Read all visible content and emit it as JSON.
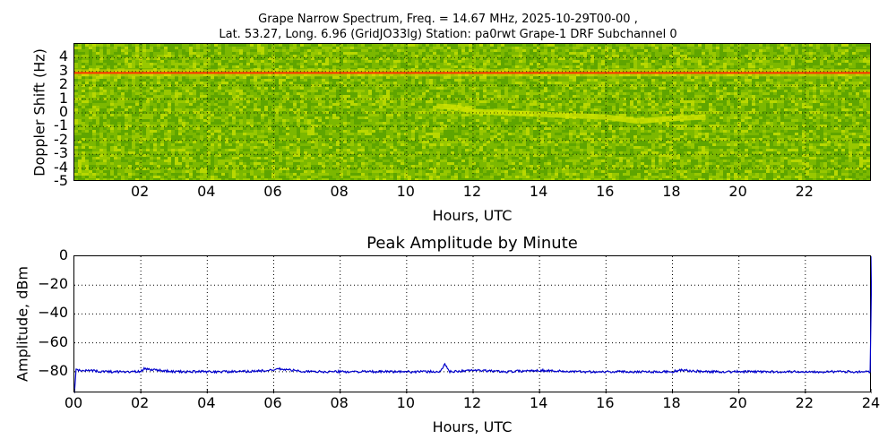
{
  "header": {
    "line1": "Grape Narrow Spectrum, Freq. = 14.67 MHz, 2025-10-29T00-00 ,",
    "line2": "Lat.  53.27, Long.   6.96 (GridJO33lg) Station: pa0rwt Grape-1 DRF Subchannel 0"
  },
  "spectrogram": {
    "ylabel": "Doppler Shift (Hz)",
    "xlabel": "Hours, UTC",
    "yticks": [
      "4",
      "3",
      "2",
      "1",
      "0",
      "-1",
      "-2",
      "-3",
      "-4",
      "-5"
    ],
    "xticks": [
      "02",
      "04",
      "06",
      "08",
      "10",
      "12",
      "14",
      "16",
      "18",
      "20",
      "22"
    ]
  },
  "amplitude": {
    "title": "Peak Amplitude by Minute",
    "ylabel": "Amplitude, dBm",
    "xlabel": "Hours, UTC",
    "yticks": [
      "0",
      "−20",
      "−40",
      "−60",
      "−80"
    ],
    "xticks": [
      "00",
      "02",
      "04",
      "06",
      "08",
      "10",
      "12",
      "14",
      "16",
      "18",
      "20",
      "22",
      "24"
    ]
  },
  "chart_data": [
    {
      "type": "heatmap",
      "title": "Grape Narrow Spectrum, Freq. = 14.67 MHz, 2025-10-29T00-00 , Lat. 53.27, Long. 6.96 (GridJO33lg) Station: pa0rwt Grape-1 DRF Subchannel 0",
      "xlabel": "Hours, UTC",
      "ylabel": "Doppler Shift (Hz)",
      "xlim": [
        0,
        24
      ],
      "ylim": [
        -5,
        5
      ],
      "xticks": [
        "02",
        "04",
        "06",
        "08",
        "10",
        "12",
        "14",
        "16",
        "18",
        "20",
        "22"
      ],
      "yticks": [
        4,
        3,
        2,
        1,
        0,
        -1,
        -2,
        -3,
        -4,
        -5
      ],
      "grid": true,
      "features": [
        {
          "name": "carrier line",
          "doppler_hz": 2.9,
          "hours": [
            0,
            24
          ],
          "color": "#ff4000"
        },
        {
          "name": "ionospheric trace",
          "points": [
            [
              10.9,
              0.5
            ],
            [
              11.5,
              0.4
            ],
            [
              12,
              0.1
            ],
            [
              13,
              0.0
            ],
            [
              14,
              -0.1
            ],
            [
              15,
              -0.2
            ],
            [
              16,
              -0.3
            ],
            [
              17,
              -0.6
            ],
            [
              18,
              -0.4
            ],
            [
              19,
              -0.3
            ]
          ]
        }
      ],
      "colormap": "green-yellow-red"
    },
    {
      "type": "line",
      "title": "Peak Amplitude by Minute",
      "xlabel": "Hours, UTC",
      "ylabel": "Amplitude, dBm",
      "xlim": [
        0,
        24
      ],
      "ylim": [
        -95,
        0
      ],
      "grid": true,
      "series": [
        {
          "name": "Peak amplitude",
          "color": "#0000cc",
          "x": [
            0,
            0.05,
            1,
            2,
            2.1,
            3,
            4,
            5,
            6,
            6.1,
            7,
            8,
            9,
            10,
            11,
            11.15,
            11.3,
            12,
            13,
            14,
            15,
            16,
            17,
            18,
            18.2,
            19,
            20,
            21,
            22,
            23,
            23.95,
            24
          ],
          "y": [
            -95,
            -79,
            -80,
            -80,
            -78,
            -80,
            -80,
            -80,
            -79,
            -78,
            -80,
            -80,
            -80,
            -80,
            -80,
            -75,
            -80,
            -79,
            -80,
            -79,
            -80,
            -80,
            -80,
            -80,
            -79,
            -80,
            -80,
            -80,
            -80,
            -80,
            -80,
            0
          ]
        }
      ]
    }
  ]
}
